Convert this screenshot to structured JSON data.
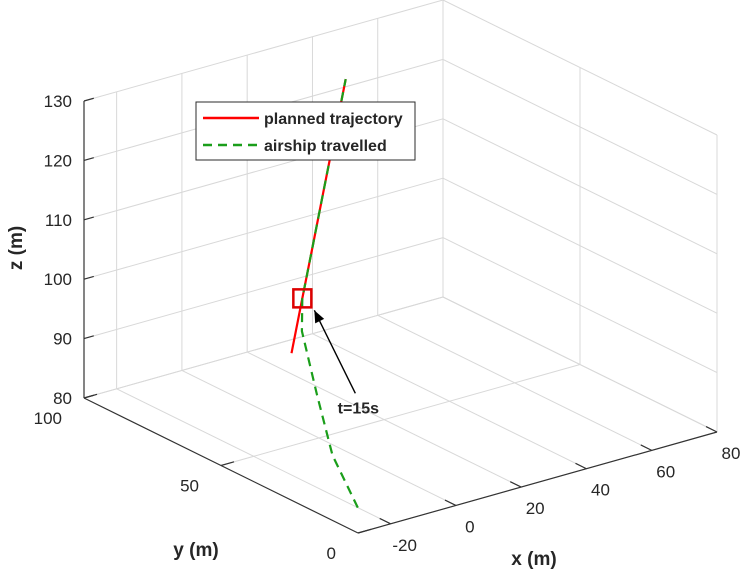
{
  "chart_data": {
    "type": "line",
    "projection": "3d",
    "title": "",
    "xlabel": "x (m)",
    "ylabel": "y (m)",
    "zlabel": "z (m)",
    "xlim": [
      -30,
      80
    ],
    "ylim": [
      0,
      100
    ],
    "zlim": [
      80,
      130
    ],
    "x_ticks": [
      "-20",
      "0",
      "20",
      "40",
      "60",
      "80"
    ],
    "y_ticks": [
      "0",
      "50",
      "100"
    ],
    "z_ticks": [
      "80",
      "90",
      "100",
      "110",
      "120",
      "130"
    ],
    "grid": true,
    "legend_position": "top-left",
    "series": [
      {
        "name": "planned trajectory",
        "color": "#ff0000",
        "style": "solid",
        "points": [
          {
            "x": 0,
            "y": 60,
            "z": 92
          },
          {
            "x": 5,
            "y": 62,
            "z": 100
          },
          {
            "x": 10,
            "y": 64,
            "z": 108
          },
          {
            "x": 15,
            "y": 66,
            "z": 116
          },
          {
            "x": 20,
            "y": 68,
            "z": 124
          },
          {
            "x": 25,
            "y": 70,
            "z": 132
          }
        ]
      },
      {
        "name": "airship travelled",
        "color": "#1a9e1a",
        "style": "dashed",
        "points": [
          {
            "x": -20,
            "y": 12,
            "z": 80
          },
          {
            "x": -16,
            "y": 26,
            "z": 85
          },
          {
            "x": -9,
            "y": 40,
            "z": 91
          },
          {
            "x": -1,
            "y": 55,
            "z": 97
          },
          {
            "x": 5,
            "y": 62,
            "z": 100
          },
          {
            "x": 10,
            "y": 64,
            "z": 108
          },
          {
            "x": 15,
            "y": 66,
            "z": 116
          },
          {
            "x": 20,
            "y": 68,
            "z": 124
          },
          {
            "x": 25,
            "y": 70,
            "z": 132
          }
        ]
      }
    ],
    "annotations": [
      {
        "text": "t=15s",
        "target": {
          "x": 5,
          "y": 62,
          "z": 100
        },
        "marker": "square",
        "marker_color": "#dd0000"
      }
    ]
  }
}
